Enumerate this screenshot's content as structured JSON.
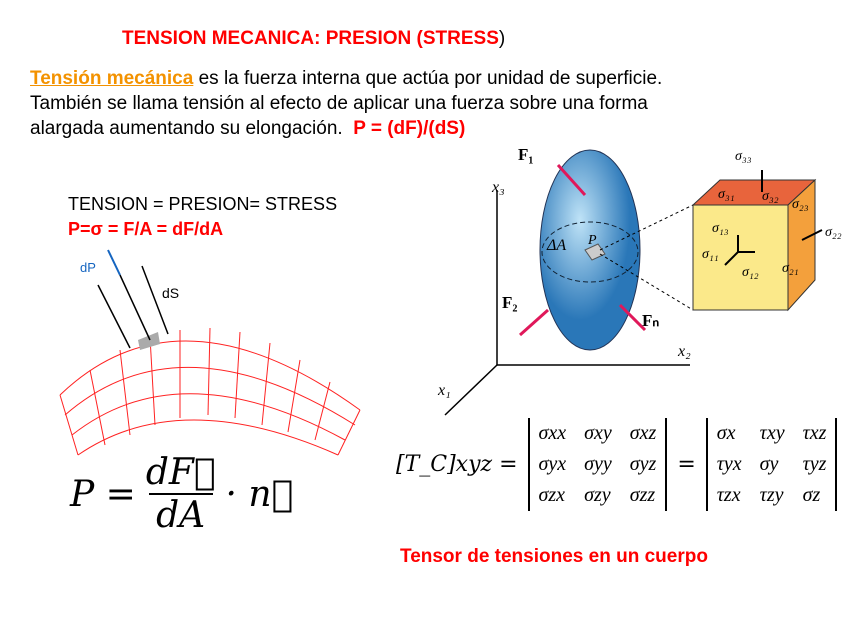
{
  "title": {
    "main": "TENSION MECANICA: PRESION (STRESS",
    "close_paren": ")"
  },
  "intro": {
    "term": "Tensión mecánica",
    "line1_rest": " es la fuerza interna que actúa por unidad de superficie.",
    "line2": "También se llama tensión al efecto de aplicar una fuerza sobre una forma",
    "line3": "alargada aumentando su elongación.",
    "formula": "P = (dF)/(dS)"
  },
  "left_labels": {
    "line1": "TENSION = PRESION= STRESS",
    "line2": "P=σ = F/A = dF/dA"
  },
  "surface_fig": {
    "dP": "dP",
    "dS": "dS"
  },
  "formula": {
    "lhs": "P =",
    "num": "dF⃗",
    "den": "dA",
    "rest": "· n⃗"
  },
  "ellipsoid_fig": {
    "x1": "x₁",
    "x2": "x₂",
    "x3": "x₃",
    "F1": "F₁",
    "F2": "F₂",
    "Fn": "Fₙ",
    "dA": "ΔA",
    "P": "P"
  },
  "cube_fig": {
    "s33": "σ₃₃",
    "s31": "σ₃₁",
    "s32": "σ₃₂",
    "s23": "σ₂₃",
    "s13": "σ₁₃",
    "s11": "σ₁₁",
    "s12": "σ₁₂",
    "s21": "σ₂₁",
    "s22": "σ₂₂"
  },
  "tensor": {
    "lhs": "[T_C]xyz =",
    "eq": "=",
    "m1": [
      [
        "σxx",
        "σxy",
        "σxz"
      ],
      [
        "σyx",
        "σyy",
        "σyz"
      ],
      [
        "σzx",
        "σzy",
        "σzz"
      ]
    ],
    "m2": [
      [
        "σx",
        "τxy",
        "τxz"
      ],
      [
        "τyx",
        "σy",
        "τyz"
      ],
      [
        "τzx",
        "τzy",
        "σz"
      ]
    ]
  },
  "caption": "Tensor de tensiones en un cuerpo"
}
